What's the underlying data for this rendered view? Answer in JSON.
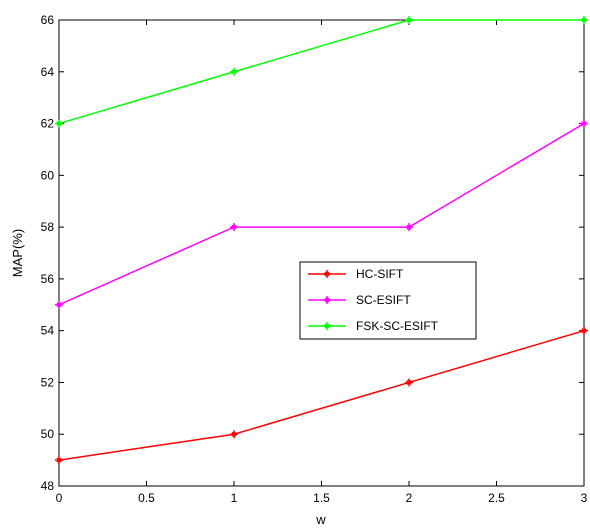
{
  "chart_data": {
    "type": "line",
    "xlabel": "w",
    "ylabel": "MAP(%)",
    "xlim": [
      0,
      3
    ],
    "ylim": [
      48,
      66
    ],
    "xticks": [
      0,
      0.5,
      1,
      1.5,
      2,
      2.5,
      3
    ],
    "yticks": [
      48,
      50,
      52,
      54,
      56,
      58,
      60,
      62,
      64,
      66
    ],
    "grid": false,
    "legend_position": "center-right",
    "x": [
      0,
      1,
      2,
      3
    ],
    "series": [
      {
        "name": "HC-SIFT",
        "color": "#ff0000",
        "values": [
          49,
          50,
          52,
          54
        ]
      },
      {
        "name": "SC-ESIFT",
        "color": "#ff00ff",
        "values": [
          55,
          58,
          58,
          62
        ]
      },
      {
        "name": "FSK-SC-ESIFT",
        "color": "#00ff00",
        "values": [
          62,
          64,
          66,
          66
        ]
      }
    ]
  }
}
